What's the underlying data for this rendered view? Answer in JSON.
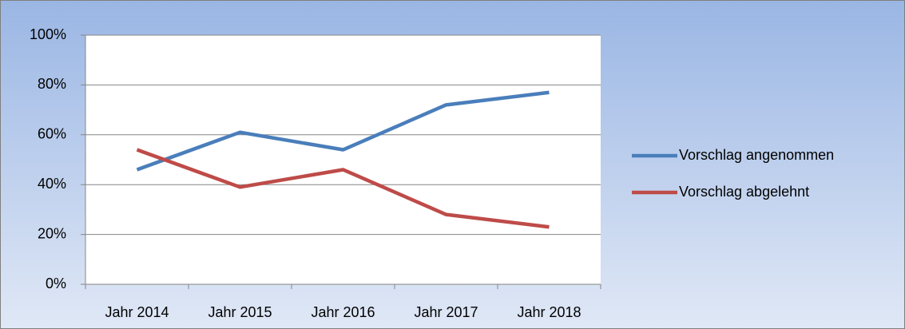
{
  "chart_data": {
    "type": "line",
    "categories": [
      "Jahr 2014",
      "Jahr 2015",
      "Jahr 2016",
      "Jahr 2017",
      "Jahr 2018"
    ],
    "series": [
      {
        "name": "Vorschlag angenommen",
        "color": "#4a7ebb",
        "values": [
          46,
          61,
          54,
          72,
          77
        ]
      },
      {
        "name": "Vorschlag abgelehnt",
        "color": "#be4b48",
        "values": [
          54,
          39,
          46,
          28,
          23
        ]
      }
    ],
    "ylim": [
      0,
      100
    ],
    "yticks": [
      {
        "value": 0,
        "label": "0%"
      },
      {
        "value": 20,
        "label": "20%"
      },
      {
        "value": 40,
        "label": "40%"
      },
      {
        "value": 60,
        "label": "60%"
      },
      {
        "value": 80,
        "label": "80%"
      },
      {
        "value": 100,
        "label": "100%"
      }
    ],
    "grid": true,
    "legend": "right"
  }
}
